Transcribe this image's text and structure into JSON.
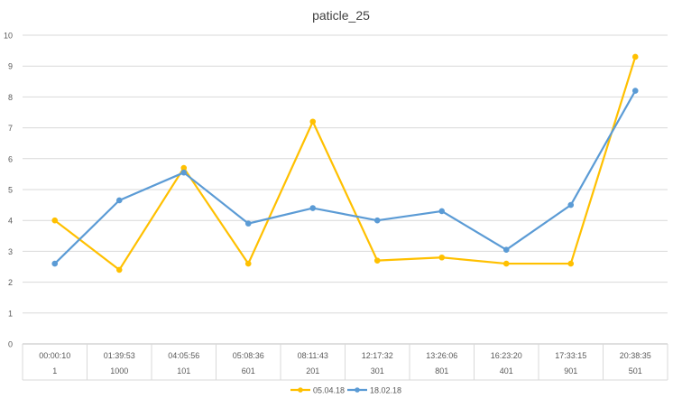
{
  "chart_data": {
    "type": "line",
    "title": "paticle_25",
    "xlabel": "",
    "ylabel": "",
    "ylim": [
      0,
      10
    ],
    "y_ticks": [
      0,
      1,
      2,
      3,
      4,
      5,
      6,
      7,
      8,
      9,
      10
    ],
    "grid": "horizontal",
    "legend_position": "bottom",
    "categories": [
      {
        "time": "00:00:10",
        "id": "1"
      },
      {
        "time": "01:39:53",
        "id": "1000"
      },
      {
        "time": "04:05:56",
        "id": "101"
      },
      {
        "time": "05:08:36",
        "id": "601"
      },
      {
        "time": "08:11:43",
        "id": "201"
      },
      {
        "time": "12:17:32",
        "id": "301"
      },
      {
        "time": "13:26:06",
        "id": "801"
      },
      {
        "time": "16:23:20",
        "id": "401"
      },
      {
        "time": "17:33:15",
        "id": "901"
      },
      {
        "time": "20:38:35",
        "id": "501"
      }
    ],
    "series": [
      {
        "name": "05.04.18",
        "color": "#FFC000",
        "values": [
          4.0,
          2.4,
          5.7,
          2.6,
          7.2,
          2.7,
          2.8,
          2.6,
          2.6,
          9.3
        ]
      },
      {
        "name": "18.02.18",
        "color": "#5B9BD5",
        "values": [
          2.6,
          4.65,
          5.55,
          3.9,
          4.4,
          4.0,
          4.3,
          3.05,
          4.5,
          8.2
        ]
      }
    ]
  }
}
